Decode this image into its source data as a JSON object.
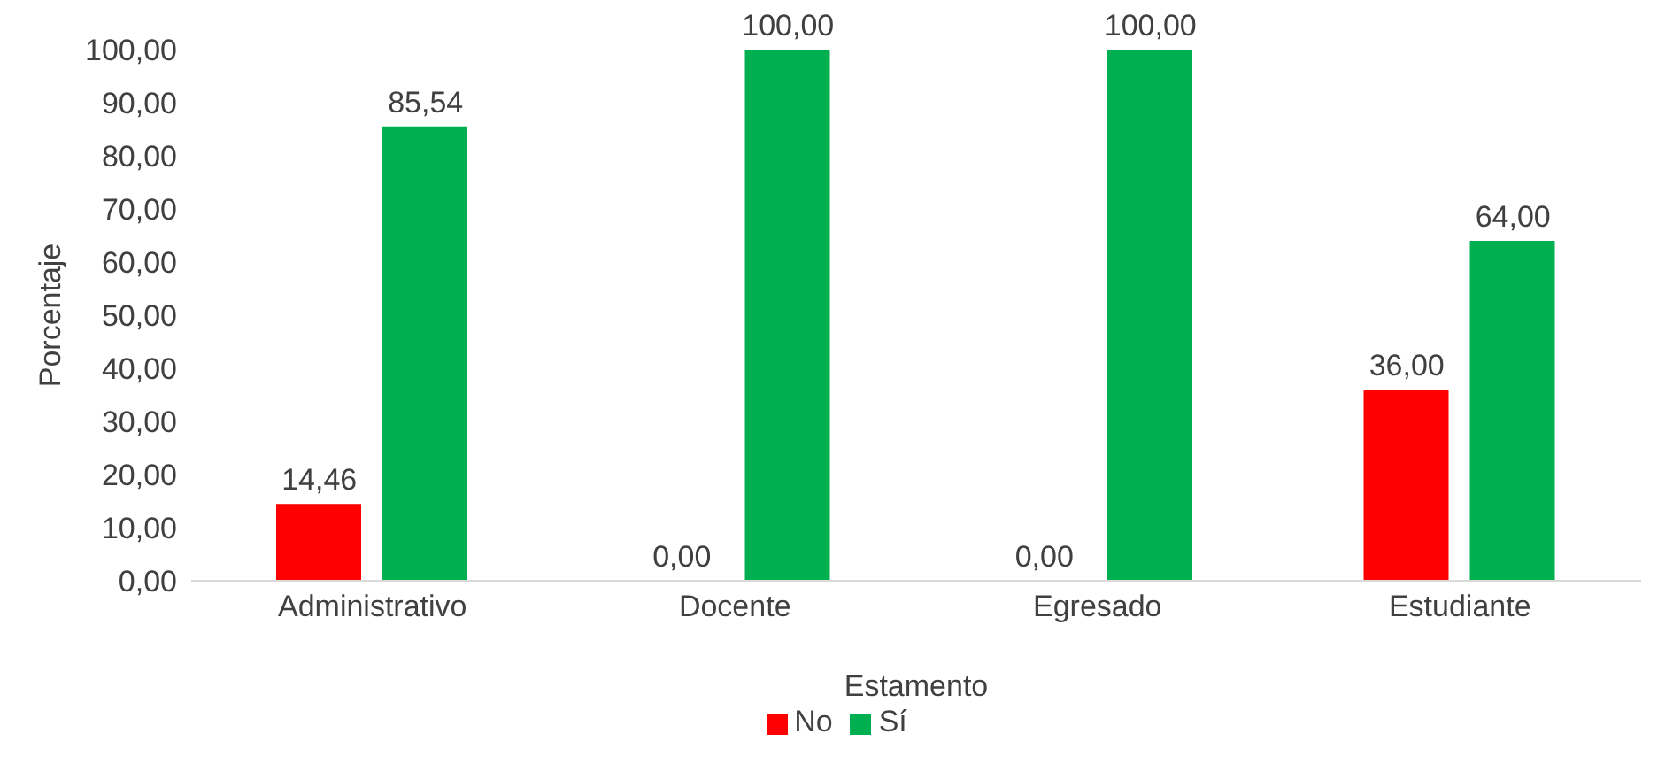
{
  "chart_data": {
    "type": "bar",
    "xlabel": "Estamento",
    "ylabel": "Porcentaje",
    "categories": [
      "Administrativo",
      "Docente",
      "Egresado",
      "Estudiante"
    ],
    "series": [
      {
        "name": "No",
        "color": "#ff0000",
        "values": [
          14.46,
          0,
          0,
          36
        ],
        "value_labels": [
          "14,46",
          "0,00",
          "0,00",
          "36,00"
        ]
      },
      {
        "name": "Sí",
        "color": "#00b050",
        "values": [
          85.54,
          100,
          100,
          64
        ],
        "value_labels": [
          "85,54",
          "100,00",
          "100,00",
          "64,00"
        ]
      }
    ],
    "ylim": [
      0,
      100
    ],
    "yticks": [
      {
        "value": 0,
        "label": "0,00"
      },
      {
        "value": 10,
        "label": "10,00"
      },
      {
        "value": 20,
        "label": "20,00"
      },
      {
        "value": 30,
        "label": "30,00"
      },
      {
        "value": 40,
        "label": "40,00"
      },
      {
        "value": 50,
        "label": "50,00"
      },
      {
        "value": 60,
        "label": "60,00"
      },
      {
        "value": 70,
        "label": "70,00"
      },
      {
        "value": 80,
        "label": "80,00"
      },
      {
        "value": 90,
        "label": "90,00"
      },
      {
        "value": 100,
        "label": "100,00"
      }
    ],
    "grid": false,
    "legend": "bottom"
  }
}
